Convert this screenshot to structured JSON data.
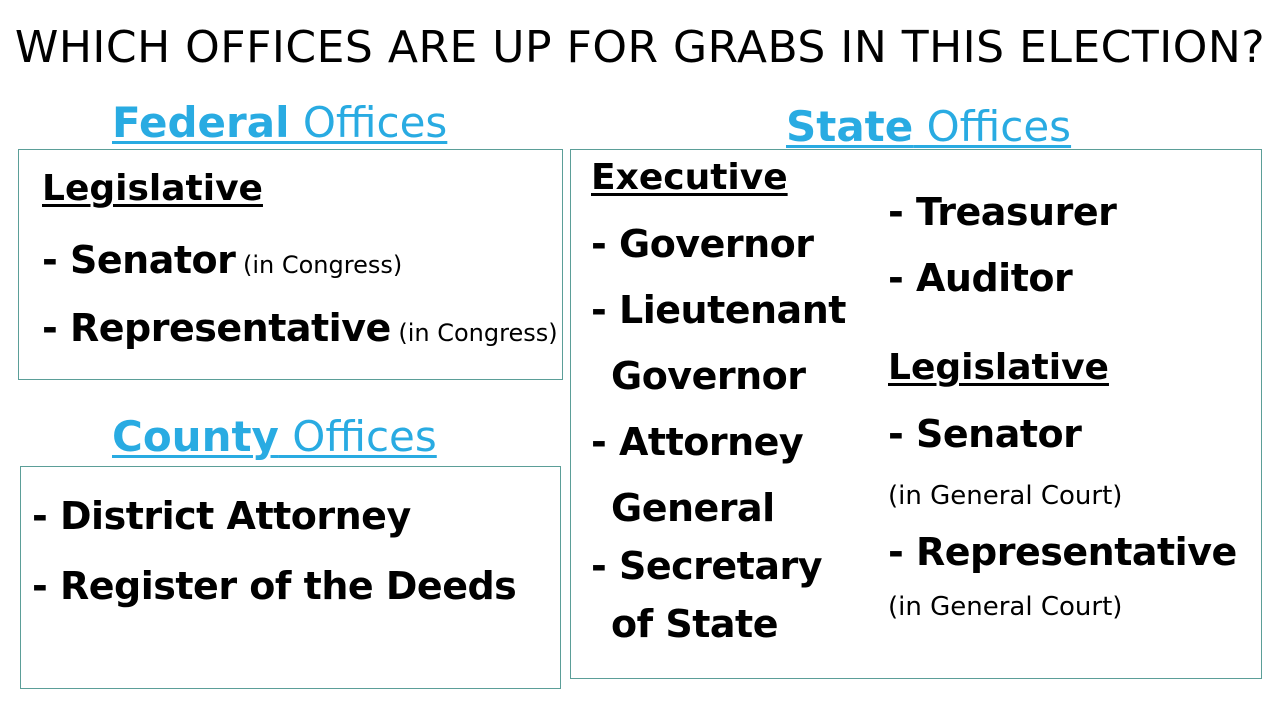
{
  "title": "WHICH OFFICES ARE UP FOR GRABS IN THIS ELECTION?",
  "federal": {
    "heading_strong": "Federal",
    "heading_rest": " Offices",
    "subheading": "Legislative",
    "senator": "- Senator",
    "senator_note": " (in Congress)",
    "representative": "- Representative",
    "representative_note": " (in Congress)"
  },
  "county": {
    "heading_strong": "County",
    "heading_rest": " Offices",
    "district_attorney": "- District Attorney",
    "register": "- Register of the Deeds"
  },
  "state": {
    "heading_strong": "State",
    "heading_rest": " Offices",
    "executive_heading": "Executive",
    "governor": "- Governor",
    "lieutenant_1": "- Lieutenant",
    "lieutenant_2": "Governor",
    "attorney_1": "- Attorney",
    "attorney_2": "General",
    "secretary_1": "- Secretary",
    "secretary_2": "of State",
    "treasurer": "- Treasurer",
    "auditor": "- Auditor",
    "legislative_heading": "Legislative",
    "senator": "- Senator",
    "senator_note": "(in General Court)",
    "representative": "- Representative",
    "representative_note": "(in General Court)"
  },
  "colors": {
    "accent": "#29abe2",
    "border": "#5b9e98"
  }
}
